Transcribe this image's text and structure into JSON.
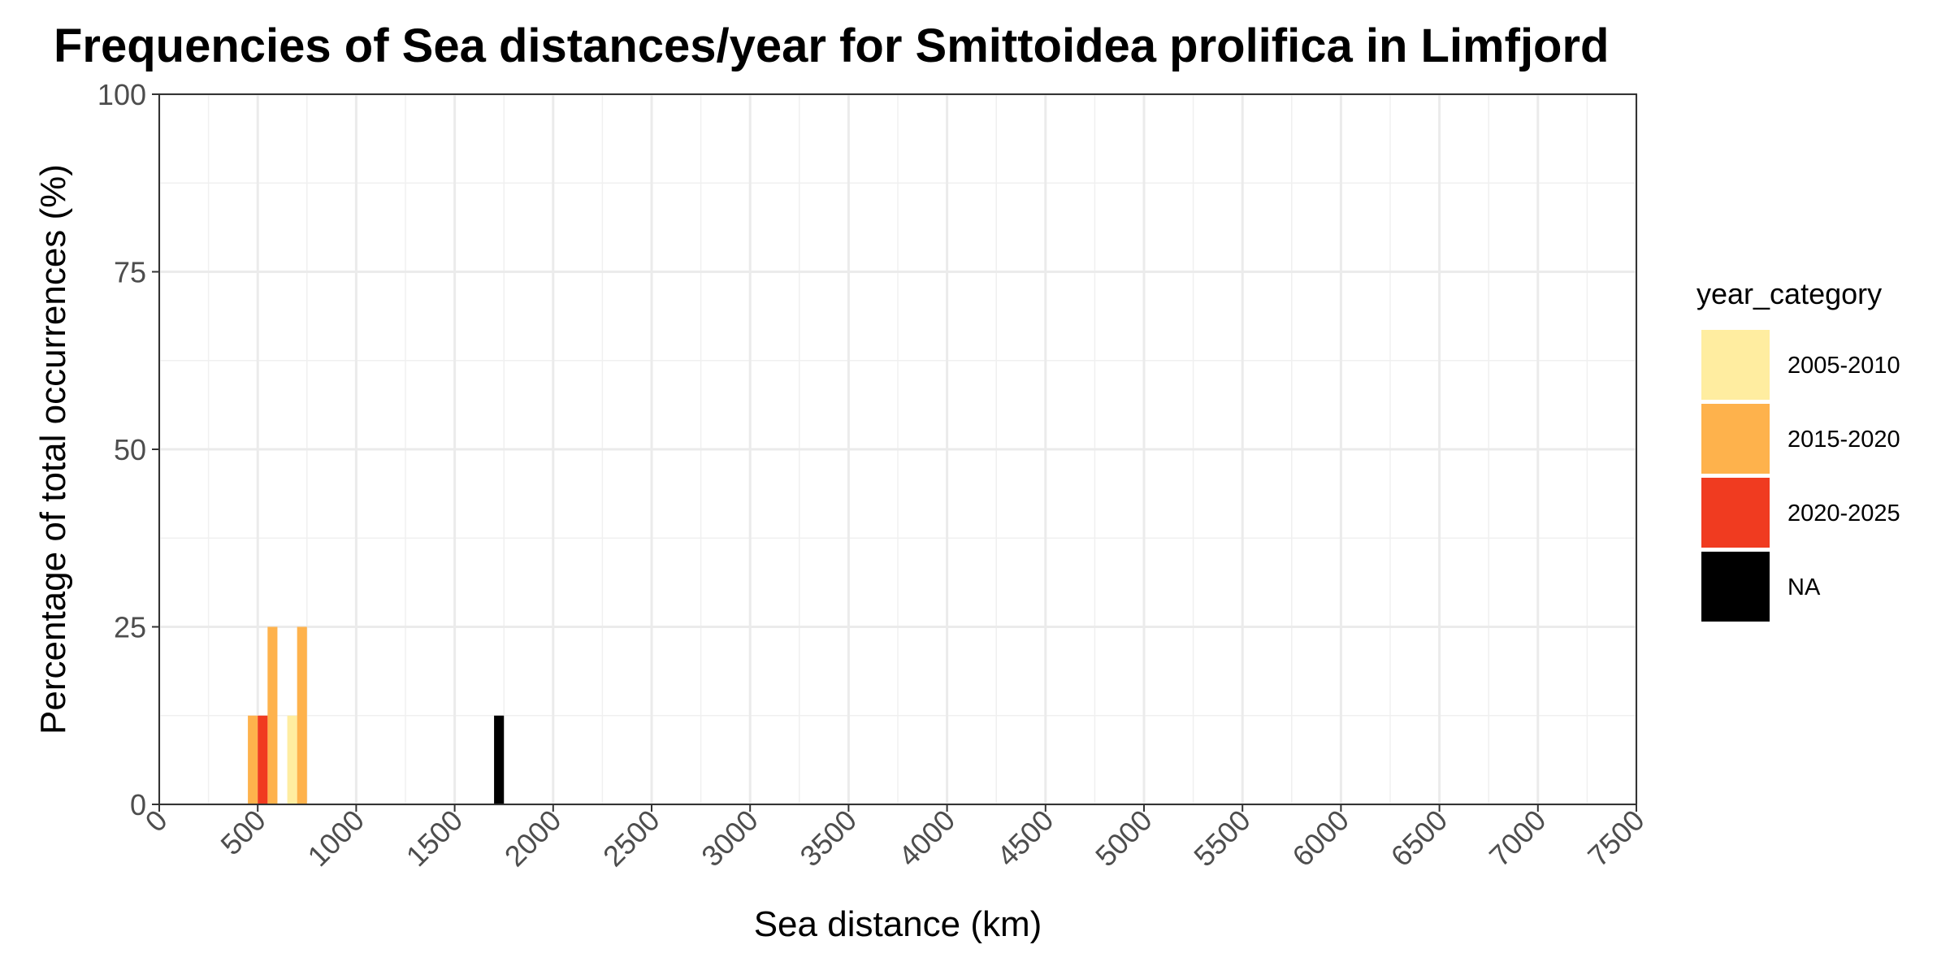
{
  "chart_data": {
    "type": "bar",
    "title": "Frequencies of Sea distances/year for Smittoidea prolifica in Limfjord",
    "xlabel": "Sea distance (km)",
    "ylabel": "Percentage of total occurrences (%)",
    "xlim": [
      0,
      7500
    ],
    "ylim": [
      0,
      100
    ],
    "x_ticks": [
      "0",
      "500",
      "1000",
      "1500",
      "2000",
      "2500",
      "3000",
      "3500",
      "4000",
      "4500",
      "5000",
      "5500",
      "6000",
      "6500",
      "7000",
      "7500"
    ],
    "y_ticks": [
      "0",
      "25",
      "50",
      "75",
      "100"
    ],
    "grid": true,
    "bin_width": 50,
    "legend": {
      "title": "year_category",
      "position": "right",
      "entries": [
        "2005-2010",
        "2015-2020",
        "2020-2025",
        "NA"
      ]
    },
    "series": [
      {
        "name": "2005-2010",
        "color": "#ffeda0",
        "bars": [
          {
            "x": 675,
            "value": 12.5
          }
        ]
      },
      {
        "name": "2015-2020",
        "color": "#feb24c",
        "bars": [
          {
            "x": 475,
            "value": 12.5
          },
          {
            "x": 575,
            "value": 25
          },
          {
            "x": 725,
            "value": 25
          }
        ]
      },
      {
        "name": "2020-2025",
        "color": "#f03b20",
        "bars": [
          {
            "x": 525,
            "value": 12.5
          }
        ]
      },
      {
        "name": "NA",
        "color": "#000000",
        "bars": [
          {
            "x": 1725,
            "value": 12.5
          }
        ]
      }
    ]
  }
}
